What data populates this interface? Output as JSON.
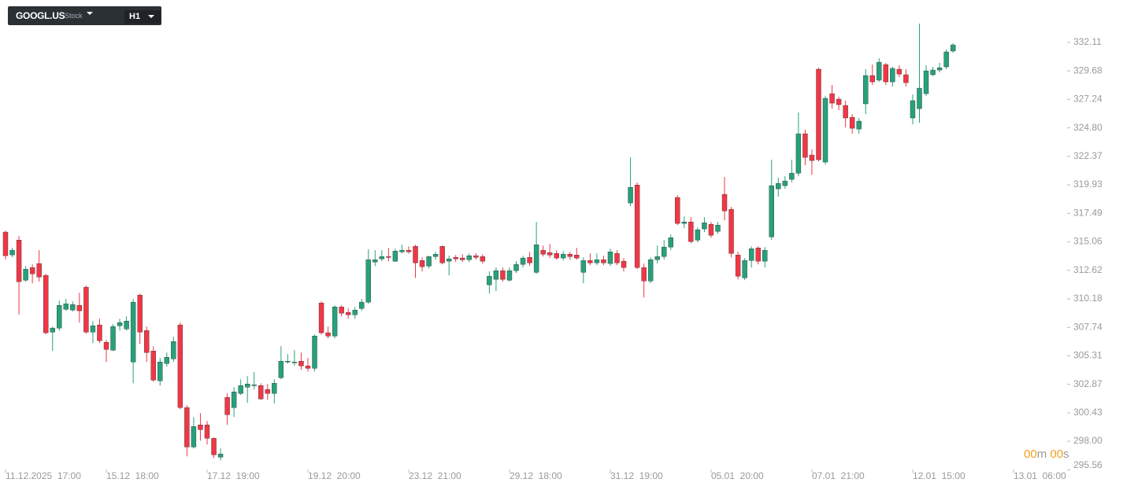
{
  "toolbar": {
    "symbol": "GOOGL.US",
    "kind": "Stock",
    "interval": "H1"
  },
  "countdown": {
    "minutes": "00",
    "minutes_unit": "m",
    "seconds": "00",
    "seconds_unit": "s"
  },
  "chart_data": {
    "type": "candlestick",
    "up_color": "#26a17b",
    "down_color": "#f23645",
    "ylim": [
      295.38,
      335.74
    ],
    "yticks": [
      {
        "value": 295.56,
        "label": "295.56"
      },
      {
        "value": 298,
        "label": "298.00"
      },
      300.43,
      302.87,
      305.31,
      307.74,
      310.18,
      312.62,
      315.06,
      317.49,
      319.93,
      322.37,
      {
        "value": 324.8,
        "label": "324.80"
      },
      327.24,
      329.68,
      332.11
    ],
    "xticks": [
      {
        "value": 0,
        "label": "11.12.2025  17:00"
      },
      {
        "value": 15,
        "label": "15.12  18:00"
      },
      {
        "value": 30,
        "label": "17.12  19:00"
      },
      {
        "value": 45,
        "label": "19.12  20:00"
      },
      {
        "value": 60,
        "label": "23.12  21:00"
      },
      {
        "value": 75,
        "label": "29.12  18:00"
      },
      {
        "value": 90,
        "label": "31.12  19:00"
      },
      {
        "value": 105,
        "label": "05.01  20:00"
      },
      {
        "value": 120,
        "label": "07.01  21:00"
      },
      {
        "value": 135,
        "label": "12.01  15:00"
      },
      {
        "value": 150,
        "label": "13.01  06:00"
      }
    ],
    "open": [
      315.89,
      313.94,
      315.21,
      311.78,
      312.86,
      313.2,
      312.19,
      307.34,
      307.68,
      309.29,
      309.22,
      309.63,
      311.18,
      307.34,
      307.95,
      306.47,
      305.79,
      307.88,
      307.61,
      304.78,
      310.5,
      307.47,
      305.72,
      303.17,
      304.65,
      305.05,
      307.95,
      300.88,
      297.51,
      299.4,
      299.4,
      298.26,
      296.64,
      301.75,
      300.88,
      302.09,
      302.63,
      302.76,
      302.76,
      302.43,
      302.09,
      303.44,
      304.78,
      304.71,
      304.85,
      304.45,
      304.24,
      309.83,
      307.28,
      307.0,
      309.49,
      309.02,
      308.82,
      309.36,
      309.9,
      313.33,
      313.6,
      313.8,
      313.4,
      314.2,
      314.34,
      314.67,
      313.46,
      312.99,
      313.8,
      314.67,
      313.4,
      313.73,
      313.67,
      313.53,
      313.87,
      313.8,
      311.38,
      311.85,
      312.59,
      311.78,
      312.59,
      313.13,
      313.73,
      312.45,
      314.34,
      314.14,
      314.07,
      313.67,
      314.0,
      313.93,
      312.45,
      313.46,
      313.26,
      313.53,
      313.2,
      314.07,
      313.4,
      318.38,
      319.92,
      312.86,
      311.71,
      313.53,
      313.8,
      314.61,
      318.85,
      316.63,
      316.76,
      315.21,
      316.16,
      316.56,
      315.95,
      319.12,
      317.84,
      313.93,
      311.98,
      313.46,
      314.54,
      313.4,
      315.48,
      319.59,
      319.86,
      320.4,
      320.93,
      324.3,
      322.48,
      329.82,
      321.88,
      327.73,
      327.26,
      326.72,
      325.71,
      324.7,
      326.86,
      329.28,
      328.88,
      330.22,
      328.74,
      329.82,
      329.35,
      325.65,
      326.45,
      327.73,
      329.35,
      329.75,
      330.02,
      331.37
    ],
    "high": [
      316.02,
      314.55,
      315.55,
      312.99,
      313.13,
      314.34,
      312.32,
      307.81,
      310.03,
      310.17,
      309.96,
      310.7,
      311.31,
      308.28,
      308.48,
      306.67,
      308.01,
      308.48,
      308.69,
      310.17,
      310.64,
      307.81,
      306.13,
      305.12,
      305.59,
      306.94,
      308.15,
      301.08,
      300.07,
      300.41,
      299.73,
      298.32,
      297.38,
      302.09,
      302.63,
      303.3,
      303.57,
      303.91,
      302.96,
      302.9,
      303.3,
      306.13,
      305.45,
      305.79,
      305.59,
      305.12,
      307.14,
      309.96,
      307.81,
      309.63,
      309.63,
      309.36,
      309.49,
      310.17,
      314.41,
      314.34,
      314.34,
      314.54,
      314.47,
      314.81,
      314.67,
      314.81,
      313.73,
      313.87,
      314.2,
      314.74,
      313.87,
      313.93,
      314.0,
      314.07,
      314.07,
      314.0,
      312.52,
      312.86,
      312.86,
      312.86,
      313.4,
      313.87,
      314.2,
      316.76,
      314.74,
      314.88,
      314.34,
      314.27,
      314.2,
      314.54,
      313.73,
      314.07,
      314.07,
      313.87,
      314.47,
      314.34,
      313.67,
      322.28,
      320.13,
      313.2,
      313.73,
      314.74,
      315.21,
      315.68,
      319.05,
      317.23,
      317.17,
      316.29,
      317.17,
      316.76,
      316.76,
      320.6,
      318.04,
      314.2,
      313.67,
      314.67,
      314.67,
      314.61,
      322.08,
      320.53,
      320.67,
      322.08,
      326.12,
      324.64,
      322.95,
      329.95,
      327.53,
      328.47,
      327.46,
      327.13,
      325.98,
      325.65,
      329.82,
      330.22,
      330.76,
      330.36,
      330.02,
      330.15,
      329.82,
      327.66,
      333.72,
      330.15,
      330.02,
      330.36,
      331.5,
      332.04
    ],
    "low": [
      313.54,
      313.74,
      308.83,
      311.65,
      311.51,
      311.65,
      307.14,
      305.73,
      307.47,
      309.16,
      309.09,
      308.15,
      307.21,
      306.4,
      306.4,
      304.78,
      305.72,
      307.47,
      307.47,
      302.96,
      306.33,
      304.78,
      303.1,
      302.76,
      304.38,
      304.78,
      300.74,
      296.71,
      297.38,
      298.05,
      297.72,
      296.57,
      296.37,
      299.4,
      300.07,
      301.96,
      301.28,
      302.43,
      301.55,
      301.55,
      301.22,
      303.3,
      304.65,
      304.45,
      304.11,
      303.97,
      303.97,
      307.14,
      306.8,
      306.8,
      308.69,
      308.48,
      308.48,
      309.16,
      309.76,
      312.99,
      313.4,
      313.4,
      313.33,
      314.07,
      314.07,
      311.98,
      312.52,
      312.79,
      313.53,
      313.13,
      312.19,
      313.33,
      313.33,
      313.33,
      313.53,
      313.2,
      310.64,
      310.84,
      311.65,
      311.65,
      312.39,
      312.86,
      312.99,
      312.32,
      313.8,
      313.67,
      313.53,
      313.46,
      313.53,
      313.53,
      311.51,
      313.06,
      313.06,
      313.06,
      312.99,
      313.06,
      312.52,
      318.11,
      312.72,
      310.3,
      311.51,
      313.2,
      313.53,
      314.34,
      316.49,
      316.22,
      314.94,
      315.01,
      315.89,
      315.41,
      315.75,
      316.9,
      313.73,
      311.85,
      311.78,
      312.86,
      313.13,
      312.86,
      315.21,
      318.92,
      319.59,
      320.13,
      320.67,
      321.61,
      320.8,
      321.94,
      321.67,
      326.45,
      326.32,
      324.84,
      324.3,
      324.3,
      325.98,
      328.47,
      328.74,
      328.47,
      328.34,
      329.14,
      328.34,
      325.11,
      325.24,
      327.53,
      329.21,
      329.55,
      329.82,
      331.23
    ],
    "close": [
      313.87,
      314.34,
      311.65,
      312.72,
      312.32,
      312.05,
      307.28,
      307.68,
      309.63,
      309.76,
      309.69,
      309.16,
      307.34,
      307.88,
      306.6,
      305.86,
      307.81,
      308.15,
      308.28,
      309.9,
      307.34,
      305.59,
      303.23,
      304.78,
      305.19,
      306.53,
      300.88,
      297.51,
      299.26,
      298.99,
      298.26,
      296.84,
      296.91,
      300.27,
      302.22,
      302.76,
      302.9,
      302.83,
      301.62,
      302.09,
      302.96,
      304.85,
      304.85,
      304.78,
      304.45,
      304.24,
      307.0,
      307.28,
      307.0,
      309.49,
      308.95,
      308.82,
      309.22,
      309.9,
      313.53,
      313.53,
      313.8,
      313.73,
      314.27,
      314.34,
      314.2,
      313.26,
      312.93,
      313.8,
      314.0,
      313.26,
      313.6,
      313.6,
      313.53,
      313.87,
      313.73,
      313.4,
      312.12,
      312.59,
      311.85,
      312.59,
      313.13,
      313.67,
      313.26,
      314.81,
      314.0,
      313.93,
      313.67,
      314.0,
      313.8,
      313.67,
      313.46,
      313.26,
      313.53,
      313.26,
      314.2,
      313.26,
      312.86,
      319.72,
      312.86,
      311.71,
      313.53,
      313.8,
      314.61,
      315.41,
      316.63,
      316.76,
      315.08,
      316.09,
      316.69,
      315.62,
      316.49,
      317.7,
      314.07,
      312.12,
      313.46,
      314.47,
      313.4,
      314.34,
      319.86,
      320.06,
      320.26,
      320.93,
      324.3,
      322.28,
      322.01,
      322.08,
      327.33,
      326.92,
      326.79,
      325.65,
      324.77,
      325.38,
      329.28,
      328.74,
      330.42,
      328.74,
      329.89,
      329.41,
      328.67,
      327.13,
      328.2,
      329.68,
      329.75,
      329.95,
      331.3,
      331.9
    ]
  }
}
